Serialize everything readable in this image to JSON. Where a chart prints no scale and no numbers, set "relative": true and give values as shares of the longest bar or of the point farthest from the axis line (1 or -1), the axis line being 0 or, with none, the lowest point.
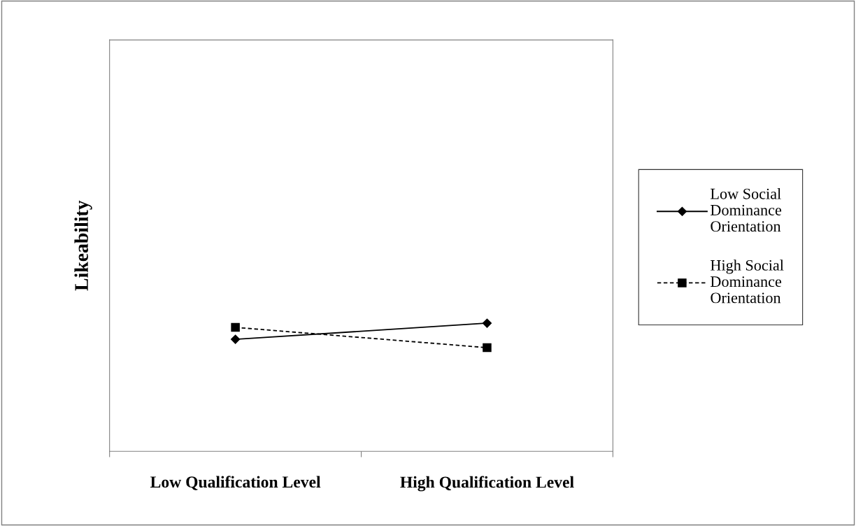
{
  "chart_data": {
    "type": "line",
    "ylabel": "Likeability",
    "categories": [
      "Low Qualification Level",
      "High Qualification Level"
    ],
    "relative": true,
    "grid": false,
    "legend": "right",
    "series": [
      {
        "name": "Low Social Dominance Orientation",
        "color": "#000000",
        "marker": "diamond",
        "line_style": "solid",
        "values": [
          0.874,
          1.0
        ]
      },
      {
        "name": "High Social Dominance Orientation",
        "color": "#000000",
        "marker": "square",
        "line_style": "dashed",
        "values": [
          0.967,
          0.809
        ]
      }
    ]
  }
}
